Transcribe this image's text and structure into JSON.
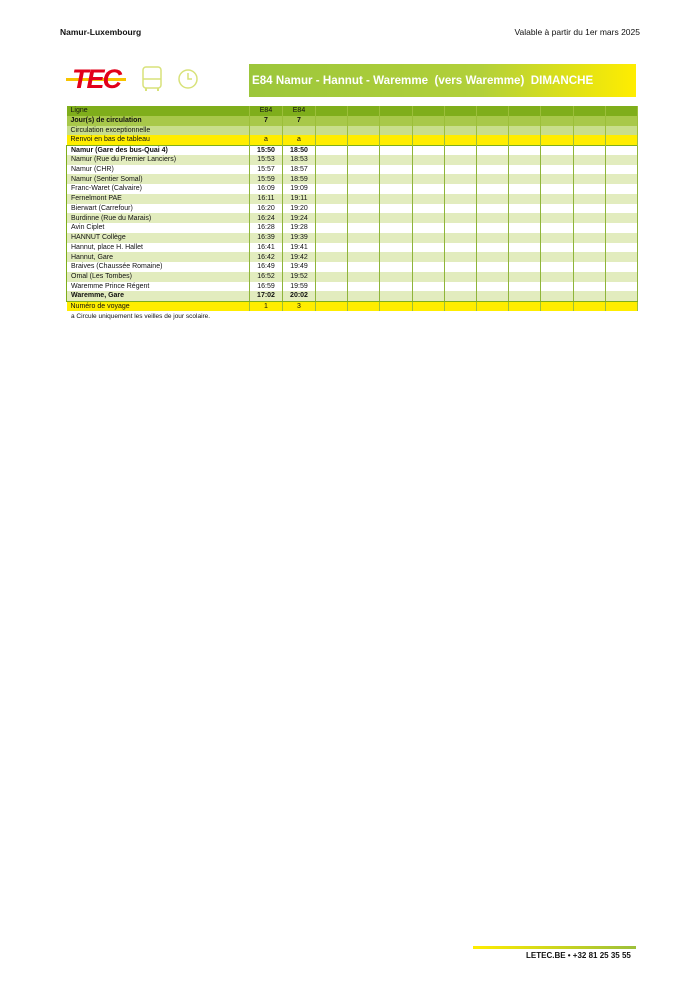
{
  "header": {
    "region": "Namur-Luxembourg",
    "validity": "Valable à partir du 1er mars 2025"
  },
  "logo": {
    "text": "TEC"
  },
  "icons": [
    "bus-icon",
    "clock-icon"
  ],
  "title": "E84 Namur - Hannut - Waremme  (vers Waremme)  DIMANCHE",
  "colors": {
    "header_green": "#7fae1b",
    "accent_yellow": "#ffed00",
    "tec_red": "#e2001a"
  },
  "table": {
    "meta": [
      {
        "label": "Ligne",
        "values": [
          "E84",
          "E84"
        ]
      },
      {
        "label": "Jour(s) de circulation",
        "values": [
          "7",
          "7"
        ]
      },
      {
        "label": "Circulation exceptionnelle",
        "values": [
          "",
          ""
        ]
      },
      {
        "label": "Renvoi en bas de tableau",
        "values": [
          "a",
          "a"
        ]
      }
    ],
    "stops": [
      {
        "name": "Namur (Gare des bus-Quai 4)",
        "times": [
          "15:50",
          "18:50"
        ]
      },
      {
        "name": "Namur (Rue du Premier Lanciers)",
        "times": [
          "15:53",
          "18:53"
        ]
      },
      {
        "name": "Namur (CHR)",
        "times": [
          "15:57",
          "18:57"
        ]
      },
      {
        "name": "Namur (Sentier Somal)",
        "times": [
          "15:59",
          "18:59"
        ]
      },
      {
        "name": "Franc-Waret (Calvaire)",
        "times": [
          "16:09",
          "19:09"
        ]
      },
      {
        "name": "Fernelmont PAE",
        "times": [
          "16:11",
          "19:11"
        ]
      },
      {
        "name": "Bierwart (Carrefour)",
        "times": [
          "16:20",
          "19:20"
        ]
      },
      {
        "name": "Burdinne (Rue du Marais)",
        "times": [
          "16:24",
          "19:24"
        ]
      },
      {
        "name": "Avin Ciplet",
        "times": [
          "16:28",
          "19:28"
        ]
      },
      {
        "name": "HANNUT Collège",
        "times": [
          "16:39",
          "19:39"
        ]
      },
      {
        "name": "Hannut, place H. Hallet",
        "times": [
          "16:41",
          "19:41"
        ]
      },
      {
        "name": "Hannut, Gare",
        "times": [
          "16:42",
          "19:42"
        ]
      },
      {
        "name": "Braives (Chaussée Romaine)",
        "times": [
          "16:49",
          "19:49"
        ]
      },
      {
        "name": "Omal (Les Tombes)",
        "times": [
          "16:52",
          "19:52"
        ]
      },
      {
        "name": "Waremme Prince Régent",
        "times": [
          "16:59",
          "19:59"
        ]
      },
      {
        "name": "Waremme, Gare",
        "times": [
          "17:02",
          "20:02"
        ]
      }
    ],
    "trip": {
      "label": "Numéro de voyage",
      "values": [
        "1",
        "3"
      ]
    }
  },
  "footnote": "a  Circule uniquement les veilles de jour scolaire.",
  "footer": {
    "contact": "LETEC.BE  •  +32 81 25 35 55"
  }
}
